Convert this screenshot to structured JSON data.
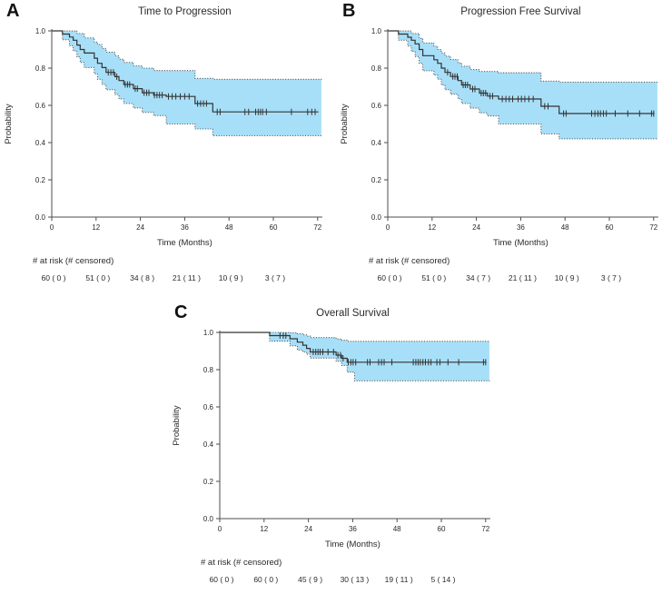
{
  "figure": {
    "colors": {
      "band": "#a8dff8",
      "band_edge": "#4d4d4d",
      "line": "#333333",
      "axis": "#4d4d4d",
      "text": "#2a2a2a"
    }
  },
  "chart_data": [
    {
      "type": "line",
      "panel_label": "A",
      "title": "Time to Progression",
      "xlabel": "Time (Months)",
      "ylabel": "Probability",
      "xlim": [
        0,
        72
      ],
      "ylim": [
        0.0,
        1.0
      ],
      "xticks": [
        0,
        12,
        24,
        36,
        48,
        60,
        72
      ],
      "ytick_labels": [
        "0.0",
        "0.2",
        "0.4",
        "0.6",
        "0.8",
        "1.0"
      ],
      "grid": false,
      "legend": "none",
      "at_risk_header": "# at risk (# censored)",
      "at_risk": [
        "60 ( 0 )",
        "51 ( 0 )",
        "34 ( 8 )",
        "21 ( 11 )",
        "10 ( 9 )",
        "3 ( 7 )"
      ],
      "series": [
        {
          "name": "KM estimate",
          "step_points": [
            [
              0,
              1.0
            ],
            [
              2.9,
              0.983
            ],
            [
              4.8,
              0.967
            ],
            [
              5.8,
              0.95
            ],
            [
              6.8,
              0.924
            ],
            [
              7.7,
              0.9
            ],
            [
              8.8,
              0.881
            ],
            [
              11.5,
              0.853
            ],
            [
              12.4,
              0.826
            ],
            [
              13.6,
              0.803
            ],
            [
              14.7,
              0.777
            ],
            [
              17.1,
              0.754
            ],
            [
              18.2,
              0.733
            ],
            [
              19.5,
              0.712
            ],
            [
              22.1,
              0.69
            ],
            [
              24.5,
              0.668
            ],
            [
              27.6,
              0.655
            ],
            [
              31,
              0.648
            ],
            [
              38.8,
              0.61
            ],
            [
              43.6,
              0.565
            ]
          ]
        },
        {
          "name": "95% CI upper",
          "step_points": [
            [
              0,
              1.0
            ],
            [
              6.8,
              0.986
            ],
            [
              8.8,
              0.962
            ],
            [
              11.5,
              0.94
            ],
            [
              12.4,
              0.927
            ],
            [
              13.6,
              0.906
            ],
            [
              14.7,
              0.886
            ],
            [
              17.1,
              0.866
            ],
            [
              18.2,
              0.848
            ],
            [
              19.5,
              0.83
            ],
            [
              22.1,
              0.812
            ],
            [
              24.5,
              0.8
            ],
            [
              27.6,
              0.787
            ],
            [
              38.8,
              0.745
            ],
            [
              43.6,
              0.74
            ]
          ]
        },
        {
          "name": "95% CI lower",
          "step_points": [
            [
              0,
              1.0
            ],
            [
              2.9,
              0.952
            ],
            [
              4.8,
              0.92
            ],
            [
              5.8,
              0.893
            ],
            [
              6.8,
              0.86
            ],
            [
              7.7,
              0.83
            ],
            [
              8.8,
              0.803
            ],
            [
              11.5,
              0.77
            ],
            [
              12.4,
              0.74
            ],
            [
              13.6,
              0.712
            ],
            [
              14.7,
              0.684
            ],
            [
              17.1,
              0.658
            ],
            [
              18.2,
              0.634
            ],
            [
              19.5,
              0.61
            ],
            [
              22.1,
              0.586
            ],
            [
              24.5,
              0.562
            ],
            [
              27.6,
              0.545
            ],
            [
              31,
              0.5
            ],
            [
              38.8,
              0.473
            ],
            [
              43.6,
              0.437
            ]
          ]
        }
      ],
      "censor_times": [
        15.3,
        16.0,
        16.7,
        17.6,
        19.9,
        20.5,
        21.1,
        22.6,
        23.2,
        25.0,
        25.7,
        26.3,
        27.8,
        28.5,
        29.2,
        29.9,
        31.6,
        32.6,
        33.6,
        34.8,
        36.0,
        37.2,
        39.5,
        40.3,
        41.1,
        41.9,
        44.8,
        45.6,
        52.3,
        53.3,
        55.2,
        55.9,
        56.5,
        57.1,
        58.1,
        64.9,
        69.3,
        70.4,
        71.3
      ]
    },
    {
      "type": "line",
      "panel_label": "B",
      "title": "Progression Free Survival",
      "xlabel": "Time (Months)",
      "ylabel": "Probability",
      "xlim": [
        0,
        72
      ],
      "ylim": [
        0.0,
        1.0
      ],
      "xticks": [
        0,
        12,
        24,
        36,
        48,
        60,
        72
      ],
      "ytick_labels": [
        "0.0",
        "0.2",
        "0.4",
        "0.6",
        "0.8",
        "1.0"
      ],
      "grid": false,
      "legend": "none",
      "at_risk_header": "# at risk (# censored)",
      "at_risk": [
        "60 ( 0 )",
        "51 ( 0 )",
        "34 ( 7 )",
        "21 ( 11 )",
        "10 ( 9 )",
        "3 ( 7 )"
      ],
      "series": [
        {
          "name": "KM estimate",
          "step_points": [
            [
              0,
              1.0
            ],
            [
              2.9,
              0.983
            ],
            [
              5.4,
              0.966
            ],
            [
              6.4,
              0.95
            ],
            [
              7.4,
              0.93
            ],
            [
              8.5,
              0.9
            ],
            [
              9.5,
              0.867
            ],
            [
              12.5,
              0.845
            ],
            [
              13.5,
              0.826
            ],
            [
              14.5,
              0.8
            ],
            [
              15.5,
              0.777
            ],
            [
              17,
              0.755
            ],
            [
              19,
              0.733
            ],
            [
              20,
              0.71
            ],
            [
              22.3,
              0.688
            ],
            [
              24.8,
              0.666
            ],
            [
              27,
              0.65
            ],
            [
              30,
              0.634
            ],
            [
              41.5,
              0.595
            ],
            [
              46.4,
              0.556
            ]
          ]
        },
        {
          "name": "95% CI upper",
          "step_points": [
            [
              0,
              1.0
            ],
            [
              6.4,
              0.986
            ],
            [
              8.5,
              0.96
            ],
            [
              9.5,
              0.935
            ],
            [
              12.5,
              0.917
            ],
            [
              13.5,
              0.9
            ],
            [
              14.5,
              0.882
            ],
            [
              15.5,
              0.864
            ],
            [
              17,
              0.846
            ],
            [
              19,
              0.828
            ],
            [
              20,
              0.81
            ],
            [
              22.3,
              0.792
            ],
            [
              24.8,
              0.782
            ],
            [
              30,
              0.775
            ],
            [
              41.5,
              0.73
            ],
            [
              46.4,
              0.725
            ]
          ]
        },
        {
          "name": "95% CI lower",
          "step_points": [
            [
              0,
              1.0
            ],
            [
              2.9,
              0.95
            ],
            [
              5.4,
              0.918
            ],
            [
              6.4,
              0.89
            ],
            [
              7.4,
              0.862
            ],
            [
              8.5,
              0.826
            ],
            [
              9.5,
              0.786
            ],
            [
              12.5,
              0.762
            ],
            [
              13.5,
              0.74
            ],
            [
              14.5,
              0.71
            ],
            [
              15.5,
              0.684
            ],
            [
              17,
              0.66
            ],
            [
              19,
              0.635
            ],
            [
              20,
              0.61
            ],
            [
              22.3,
              0.585
            ],
            [
              24.8,
              0.56
            ],
            [
              27,
              0.543
            ],
            [
              30,
              0.5
            ],
            [
              41.5,
              0.447
            ],
            [
              46.4,
              0.42
            ]
          ]
        }
      ],
      "censor_times": [
        16.2,
        17.6,
        18.2,
        18.8,
        20.4,
        21.0,
        21.6,
        23.0,
        23.6,
        25.3,
        25.9,
        26.5,
        27.7,
        28.4,
        31.0,
        32.0,
        32.9,
        33.8,
        35.3,
        36.2,
        37.1,
        38.2,
        39.4,
        42.5,
        43.4,
        47.6,
        48.3,
        55.2,
        56.1,
        56.9,
        57.6,
        58.4,
        59.2,
        61.6,
        65.0,
        68.2,
        71.4,
        72.0
      ]
    },
    {
      "type": "line",
      "panel_label": "C",
      "title": "Overall Survival",
      "xlabel": "Time (Months)",
      "ylabel": "Probability",
      "xlim": [
        0,
        72
      ],
      "ylim": [
        0.0,
        1.0
      ],
      "xticks": [
        0,
        12,
        24,
        36,
        48,
        60,
        72
      ],
      "ytick_labels": [
        "0.0",
        "0.2",
        "0.4",
        "0.6",
        "0.8",
        "1.0"
      ],
      "grid": false,
      "legend": "none",
      "at_risk_header": "# at risk (# censored)",
      "at_risk": [
        "60 ( 0 )",
        "60 ( 0 )",
        "45 ( 9 )",
        "30 ( 13 )",
        "19 ( 11 )",
        "5 ( 14 )"
      ],
      "series": [
        {
          "name": "KM estimate",
          "step_points": [
            [
              0,
              1.0
            ],
            [
              13.5,
              0.983
            ],
            [
              19,
              0.966
            ],
            [
              21,
              0.948
            ],
            [
              22.5,
              0.931
            ],
            [
              23.5,
              0.914
            ],
            [
              24.5,
              0.895
            ],
            [
              31.5,
              0.878
            ],
            [
              33,
              0.861
            ],
            [
              34.5,
              0.84
            ]
          ]
        },
        {
          "name": "95% CI upper",
          "step_points": [
            [
              0,
              1.0
            ],
            [
              19,
              0.998
            ],
            [
              21,
              0.993
            ],
            [
              22.5,
              0.987
            ],
            [
              23.5,
              0.98
            ],
            [
              24.5,
              0.972
            ],
            [
              31.5,
              0.965
            ],
            [
              33,
              0.958
            ],
            [
              34.5,
              0.952
            ]
          ]
        },
        {
          "name": "95% CI lower",
          "step_points": [
            [
              0,
              1.0
            ],
            [
              13.5,
              0.953
            ],
            [
              19,
              0.928
            ],
            [
              21,
              0.906
            ],
            [
              22.5,
              0.895
            ],
            [
              23.5,
              0.883
            ],
            [
              24.5,
              0.862
            ],
            [
              31.5,
              0.845
            ],
            [
              33,
              0.822
            ],
            [
              34.5,
              0.787
            ],
            [
              36.5,
              0.74
            ]
          ]
        }
      ],
      "censor_times": [
        16.3,
        17.2,
        17.9,
        25.3,
        26.0,
        26.6,
        27.2,
        27.9,
        29.3,
        30.8,
        32.0,
        32.7,
        33.4,
        34.8,
        35.5,
        36.1,
        36.8,
        40.0,
        40.7,
        43.0,
        43.8,
        44.5,
        46.6,
        52.4,
        53.1,
        53.7,
        54.3,
        55.0,
        55.7,
        56.5,
        57.2,
        58.8,
        59.6,
        61.8,
        64.7,
        71.4,
        72.0
      ]
    }
  ]
}
